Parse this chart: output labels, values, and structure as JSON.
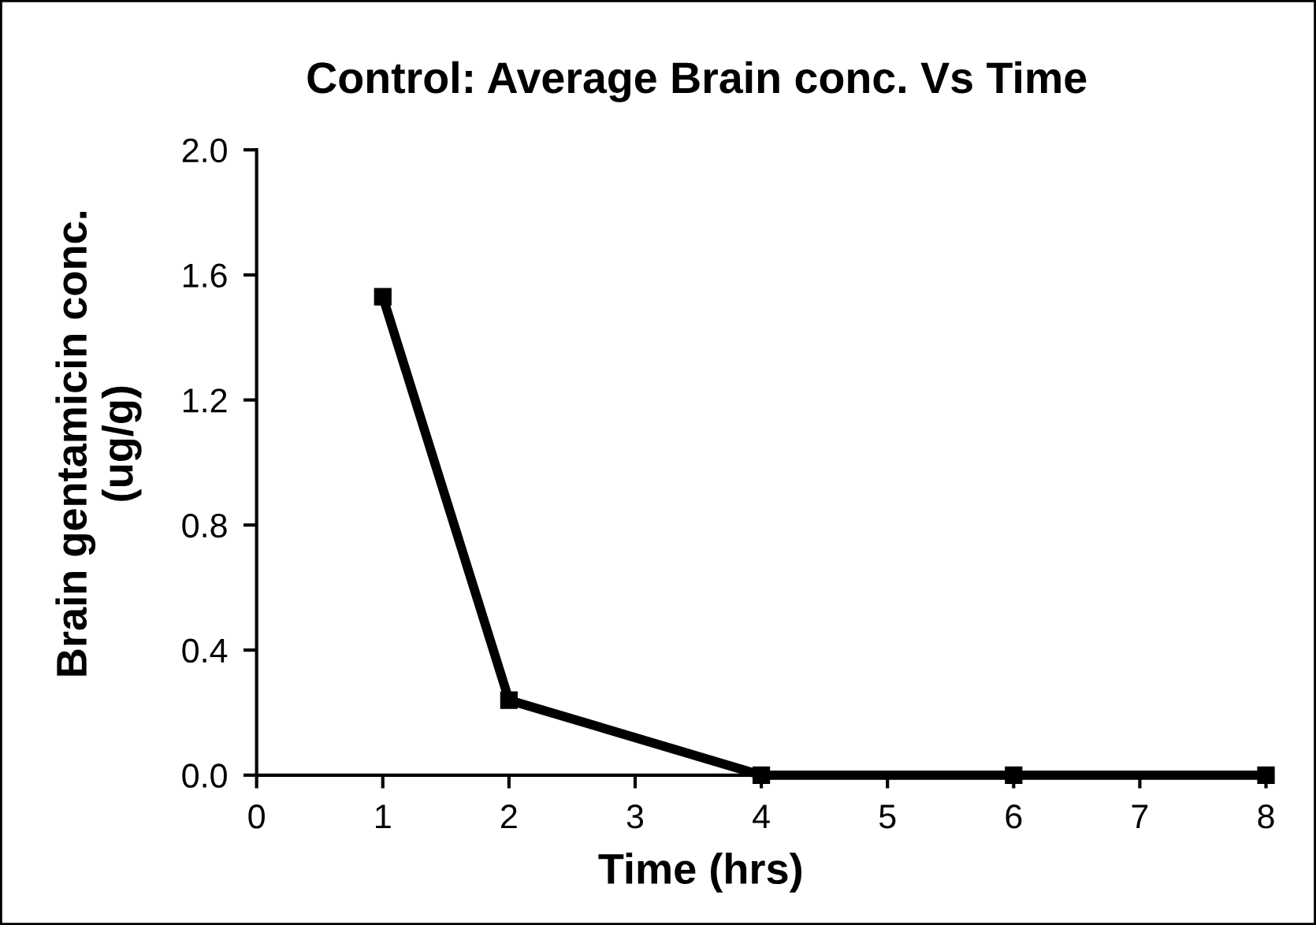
{
  "chart_data": {
    "type": "line",
    "title": "Control: Average Brain conc. Vs Time",
    "xlabel": "Time (hrs)",
    "ylabel": "Brain gentamicin conc.\n(ug/g)",
    "x": [
      1,
      2,
      4,
      6,
      8
    ],
    "series": [
      {
        "color": "#000000",
        "values": [
          1.53,
          0.24,
          0.0,
          0.0,
          0.0
        ]
      }
    ],
    "xlim": [
      0,
      8
    ],
    "ylim": [
      0,
      2.0
    ],
    "xticks": [
      0,
      1,
      2,
      3,
      4,
      5,
      6,
      7,
      8
    ],
    "yticks": [
      {
        "value": 0,
        "label": "0.0"
      },
      {
        "value": 0.4,
        "label": "0.4"
      },
      {
        "value": 0.8,
        "label": "0.8"
      },
      {
        "value": 1.2,
        "label": "1.2"
      },
      {
        "value": 1.6,
        "label": "1.6"
      },
      {
        "value": 2.0,
        "label": "2.0"
      }
    ],
    "grid": false,
    "marker": "square",
    "line_style": "solid"
  }
}
